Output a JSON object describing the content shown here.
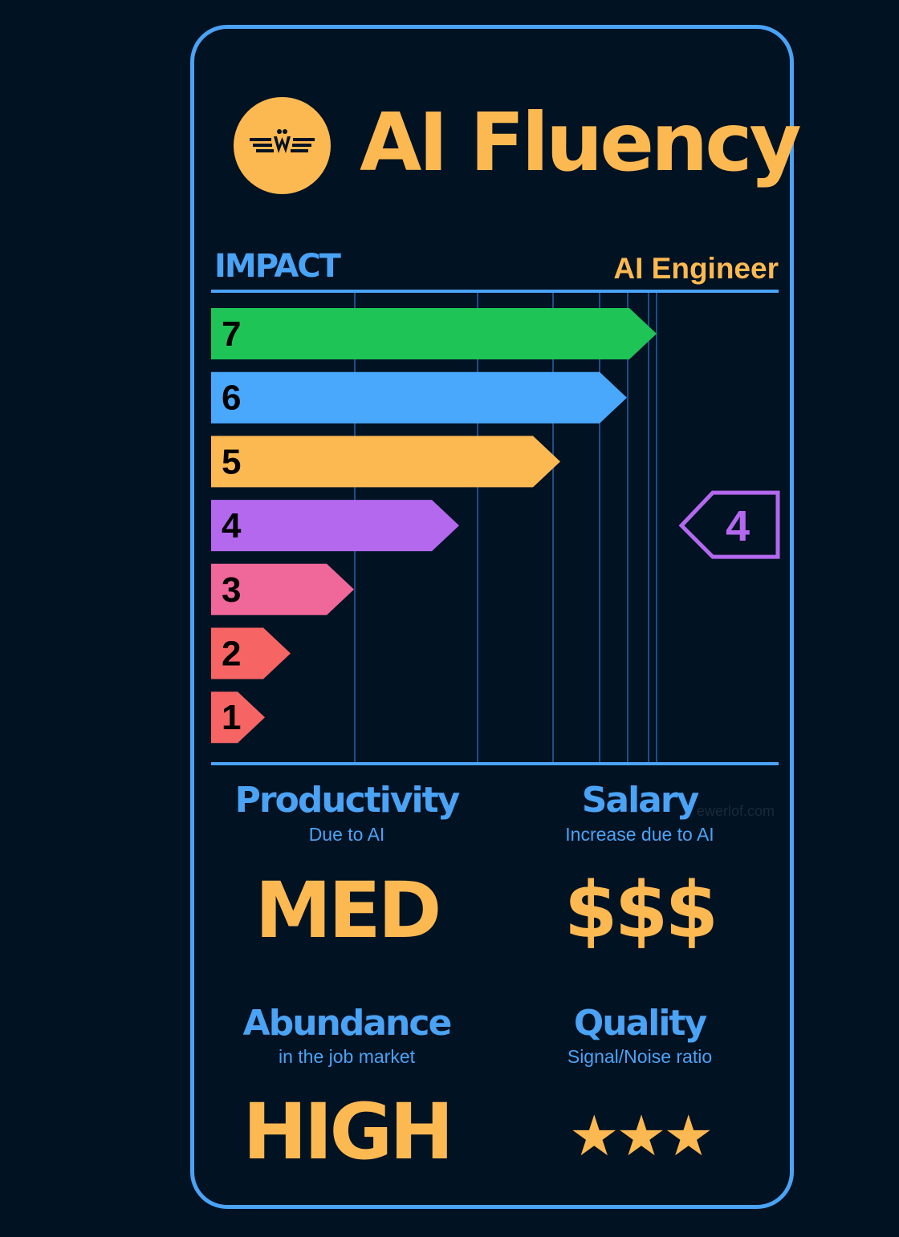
{
  "header": {
    "title": "AI Fluency",
    "section_label": "IMPACT",
    "role": "AI Engineer"
  },
  "chart_data": {
    "type": "bar",
    "orientation": "horizontal",
    "bars": [
      {
        "label": "7",
        "value": 7,
        "color": "#1fc456"
      },
      {
        "label": "6",
        "value": 6,
        "color": "#4aa8fc"
      },
      {
        "label": "5",
        "value": 5,
        "color": "#fdb951"
      },
      {
        "label": "4",
        "value": 4,
        "color": "#b368ee"
      },
      {
        "label": "3",
        "value": 3,
        "color": "#f0679a"
      },
      {
        "label": "2",
        "value": 2,
        "color": "#f76464"
      },
      {
        "label": "1",
        "value": 1,
        "color": "#f76464"
      }
    ],
    "selected": {
      "label": "4",
      "value": 4,
      "color": "#b368ee"
    }
  },
  "watermark": "ewerlof.com",
  "metrics": {
    "productivity": {
      "title": "Productivity",
      "subtitle": "Due to AI",
      "value": "MED"
    },
    "salary": {
      "title": "Salary",
      "subtitle": "Increase due to AI",
      "value": "$$$"
    },
    "abundance": {
      "title": "Abundance",
      "subtitle": "in the job market",
      "value": "HIGH"
    },
    "quality": {
      "title": "Quality",
      "subtitle": "Signal/Noise ratio",
      "value": "★★★",
      "rating": 3
    }
  },
  "colors": {
    "background": "#011223",
    "accent_blue": "#4aa3f5",
    "accent_gold": "#fdb951",
    "grid": "#1f4d85"
  },
  "icons": {
    "logo": "winged-w-logo-icon"
  }
}
